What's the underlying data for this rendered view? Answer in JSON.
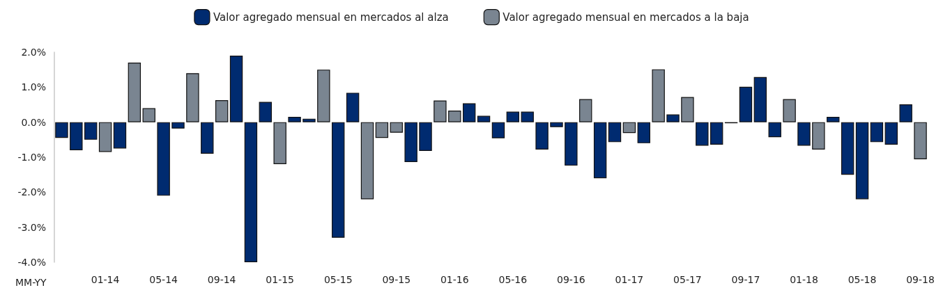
{
  "chart_data": {
    "type": "bar",
    "xlabel": "MM-YY",
    "categories": [
      null,
      null,
      null,
      "01-14",
      null,
      null,
      null,
      "05-14",
      null,
      null,
      null,
      "09-14",
      null,
      null,
      null,
      "01-15",
      null,
      null,
      null,
      "05-15",
      null,
      null,
      null,
      "09-15",
      null,
      null,
      null,
      "01-16",
      null,
      null,
      null,
      "05-16",
      null,
      null,
      null,
      "09-16",
      null,
      null,
      null,
      "01-17",
      null,
      null,
      null,
      "05-17",
      null,
      null,
      null,
      "09-17",
      null,
      null,
      null,
      "01-18",
      null,
      null,
      null,
      "05-18",
      null,
      null,
      null,
      "09-18"
    ],
    "series": [
      {
        "name": "Valor agregado mensual en mercados al alza",
        "color": "#002b70",
        "values": [
          -0.45,
          -0.8,
          -0.5,
          null,
          -0.75,
          null,
          null,
          -2.1,
          -0.18,
          null,
          -0.9,
          null,
          1.9,
          -4.0,
          0.58,
          null,
          0.15,
          0.1,
          null,
          -3.3,
          0.84,
          null,
          null,
          null,
          -1.14,
          -0.82,
          null,
          null,
          0.54,
          0.18,
          -0.46,
          0.3,
          0.3,
          -0.78,
          -0.14,
          -1.24,
          null,
          -1.6,
          -0.57,
          null,
          -0.6,
          null,
          0.22,
          null,
          -0.67,
          -0.64,
          -0.03,
          1.01,
          1.29,
          -0.43,
          null,
          -0.67,
          null,
          0.15,
          -1.5,
          -2.2,
          -0.57,
          -0.64,
          0.51,
          null
        ]
      },
      {
        "name": "Valor agregado mensual en mercados a la baja",
        "color": "#7a8591",
        "values": [
          null,
          null,
          null,
          -0.85,
          null,
          1.7,
          0.4,
          null,
          null,
          1.4,
          null,
          0.63,
          null,
          null,
          null,
          -1.2,
          null,
          null,
          1.5,
          null,
          null,
          -2.2,
          -0.45,
          -0.3,
          null,
          null,
          0.62,
          0.33,
          null,
          null,
          null,
          null,
          null,
          null,
          null,
          null,
          0.66,
          null,
          null,
          -0.31,
          null,
          1.51,
          null,
          0.72,
          null,
          null,
          null,
          null,
          null,
          null,
          0.66,
          null,
          -0.78,
          null,
          null,
          null,
          null,
          null,
          null,
          -1.06
        ]
      }
    ],
    "ylim": [
      -4,
      2
    ],
    "yticks": [
      {
        "value": -4,
        "label": "-4.0%"
      },
      {
        "value": -3,
        "label": "-3.0%"
      },
      {
        "value": -2,
        "label": "-2.0%"
      },
      {
        "value": -1,
        "label": "-1.0%"
      },
      {
        "value": 0,
        "label": "0.0%"
      },
      {
        "value": 1,
        "label": "1.0%"
      },
      {
        "value": 2,
        "label": "2.0%"
      }
    ],
    "grid": false,
    "legend": "top"
  }
}
